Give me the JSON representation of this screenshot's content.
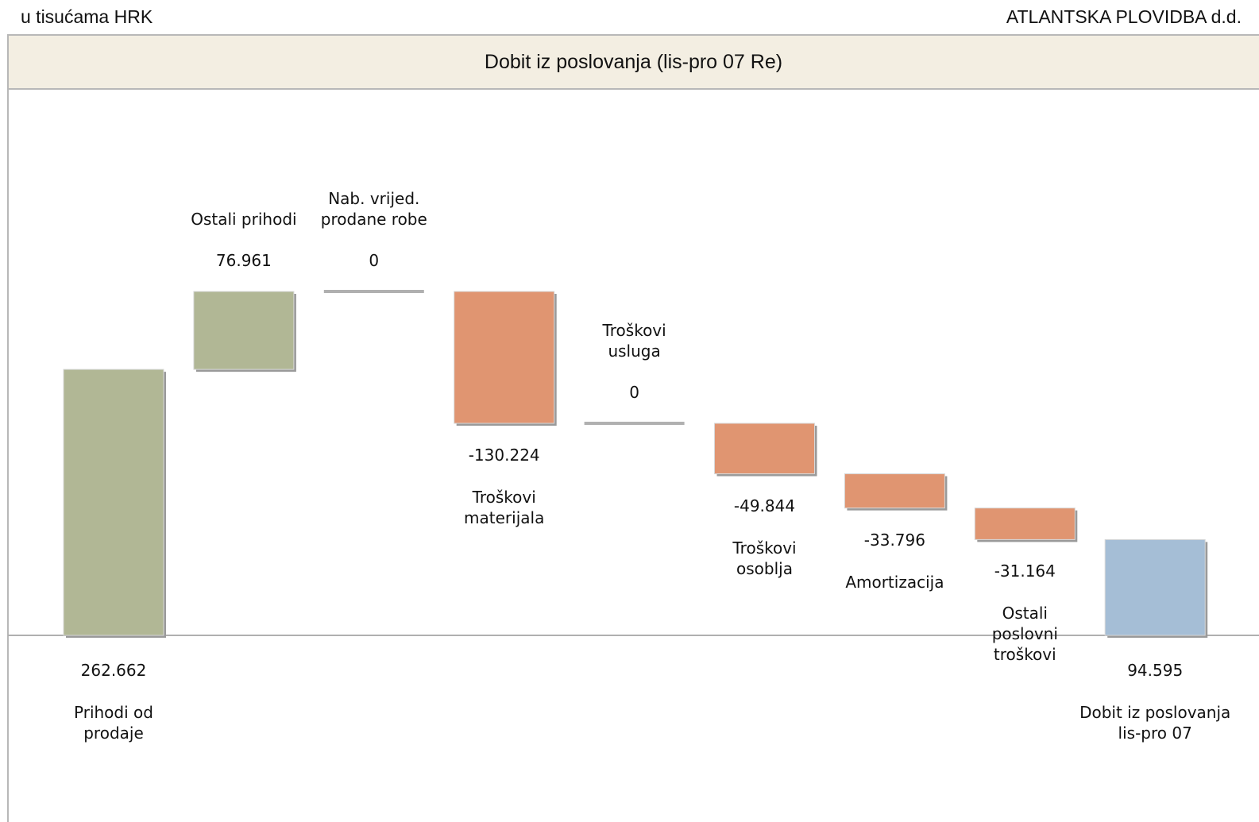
{
  "header": {
    "unit": "u tisućama HRK",
    "company": "ATLANTSKA PLOVIDBA d.d."
  },
  "chart_data": {
    "type": "waterfall",
    "title": "Dobit iz poslovanja (lis-pro 07 Re)",
    "categories": [
      "Prihodi od\nprodaje",
      "Ostali prihodi",
      "Nab. vrijed.\nprodane robe",
      "Troškovi\nmaterijala",
      "Troškovi\nusluga",
      "Troškovi\nosoblja",
      "Amortizacija",
      "Ostali\nposlovni\ntroškovi",
      "Dobit iz poslovanja\nlis-pro 07"
    ],
    "values": [
      262662,
      76961,
      0,
      -130224,
      0,
      -49844,
      -33796,
      -31164,
      94595
    ],
    "value_labels": [
      "262.662",
      "76.961",
      "0",
      "-130.224",
      "0",
      "-49.844",
      "-33.796",
      "-31.164",
      "94.595"
    ],
    "is_total": [
      false,
      false,
      false,
      false,
      false,
      false,
      false,
      false,
      true
    ],
    "colors": {
      "increase": "#b1b795",
      "decrease": "#e09571",
      "total": "#a5bed6",
      "zero": "#b0b0b0"
    }
  }
}
